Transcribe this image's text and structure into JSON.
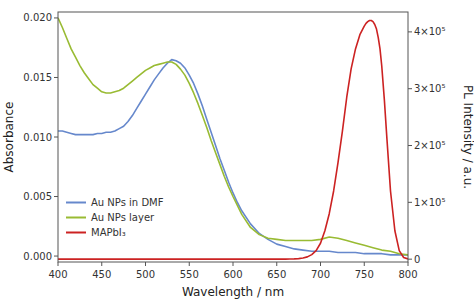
{
  "chart_data": {
    "type": "line",
    "xlabel": "Wavelength / nm",
    "ylabel": "Absorbance",
    "y2label": "PL Intensity / a.u.",
    "xlim": [
      400,
      800
    ],
    "xticks": [
      400,
      450,
      500,
      550,
      600,
      650,
      700,
      750,
      800
    ],
    "ylim": [
      -0.0005,
      0.0205
    ],
    "yticks": [
      {
        "value": 0.0,
        "label": "0.000"
      },
      0.005,
      {
        "value": 0.01,
        "label": "0.010"
      },
      0.015,
      {
        "value": 0.02,
        "label": "0.020"
      }
    ],
    "y2lim": [
      -5000,
      435000
    ],
    "y2ticks": [
      0,
      {
        "value": 100000,
        "label": "1×10⁵"
      },
      {
        "value": 200000,
        "label": "2×10⁵"
      },
      {
        "value": 300000,
        "label": "3×10⁵"
      },
      {
        "value": 400000,
        "label": "4×10⁵"
      }
    ],
    "legend": "lower left",
    "series": [
      {
        "name": "Au NPs in DMF",
        "color": "#6688cc",
        "axis": "y",
        "x": [
          400,
          405,
          410,
          415,
          420,
          425,
          430,
          435,
          440,
          445,
          450,
          455,
          460,
          465,
          470,
          475,
          480,
          485,
          490,
          495,
          500,
          505,
          510,
          515,
          520,
          525,
          530,
          535,
          540,
          545,
          550,
          555,
          560,
          565,
          570,
          575,
          580,
          585,
          590,
          595,
          600,
          605,
          610,
          620,
          630,
          640,
          650,
          660,
          670,
          680,
          690,
          700,
          710,
          720,
          730,
          740,
          750,
          760,
          770,
          780,
          790,
          800
        ],
        "values": [
          0.0105,
          0.0105,
          0.0104,
          0.0103,
          0.0102,
          0.0102,
          0.0102,
          0.0102,
          0.0102,
          0.0103,
          0.0103,
          0.0104,
          0.0104,
          0.0105,
          0.0107,
          0.0109,
          0.0113,
          0.0118,
          0.0124,
          0.013,
          0.0136,
          0.0142,
          0.0148,
          0.0153,
          0.0158,
          0.0162,
          0.0165,
          0.0164,
          0.0162,
          0.0158,
          0.0152,
          0.0145,
          0.0136,
          0.0126,
          0.0115,
          0.0104,
          0.0093,
          0.0082,
          0.0072,
          0.0062,
          0.0053,
          0.0045,
          0.0038,
          0.0027,
          0.0019,
          0.0014,
          0.001,
          0.0008,
          0.0006,
          0.0005,
          0.0004,
          0.0004,
          0.0004,
          0.0003,
          0.0003,
          0.0003,
          0.0002,
          0.0002,
          0.0002,
          0.0001,
          0.0001,
          0.0001
        ]
      },
      {
        "name": "Au NPs layer",
        "color": "#99bb33",
        "axis": "y",
        "x": [
          400,
          405,
          410,
          415,
          420,
          425,
          430,
          435,
          440,
          445,
          450,
          455,
          460,
          465,
          470,
          475,
          480,
          485,
          490,
          495,
          500,
          505,
          510,
          515,
          520,
          525,
          530,
          535,
          540,
          545,
          550,
          555,
          560,
          565,
          570,
          575,
          580,
          585,
          590,
          595,
          600,
          610,
          620,
          630,
          640,
          650,
          660,
          670,
          680,
          690,
          700,
          710,
          720,
          730,
          740,
          750,
          760,
          770,
          780,
          790,
          800
        ],
        "values": [
          0.02,
          0.0192,
          0.0183,
          0.0174,
          0.0167,
          0.016,
          0.0154,
          0.0149,
          0.0144,
          0.0141,
          0.0138,
          0.0137,
          0.0137,
          0.0138,
          0.0139,
          0.0141,
          0.0144,
          0.0147,
          0.015,
          0.0153,
          0.0156,
          0.0158,
          0.016,
          0.0161,
          0.0162,
          0.0163,
          0.0163,
          0.0161,
          0.0157,
          0.0152,
          0.0145,
          0.0137,
          0.0128,
          0.0118,
          0.0108,
          0.0097,
          0.0087,
          0.0077,
          0.0067,
          0.0058,
          0.005,
          0.0035,
          0.0024,
          0.0018,
          0.0015,
          0.0014,
          0.0013,
          0.0013,
          0.0013,
          0.0013,
          0.0014,
          0.0016,
          0.0015,
          0.0013,
          0.0011,
          0.0009,
          0.0007,
          0.0005,
          0.0004,
          0.0002,
          0.0001
        ]
      },
      {
        "name": "MAPbI₃",
        "color": "#cc2222",
        "axis": "y2",
        "x": [
          400,
          600,
          610,
          620,
          630,
          640,
          650,
          660,
          665,
          670,
          675,
          680,
          685,
          690,
          695,
          700,
          705,
          710,
          715,
          720,
          725,
          730,
          735,
          740,
          745,
          750,
          752,
          754,
          756,
          758,
          760,
          762,
          764,
          766,
          768,
          770,
          773,
          776,
          780,
          785,
          790,
          795,
          800
        ],
        "values": [
          0,
          0,
          0,
          0,
          0,
          0,
          0,
          0,
          200,
          500,
          1000,
          2000,
          4000,
          8000,
          15000,
          28000,
          50000,
          80000,
          120000,
          170000,
          225000,
          285000,
          335000,
          370000,
          395000,
          410000,
          415000,
          418000,
          420000,
          420000,
          418000,
          413000,
          405000,
          390000,
          370000,
          340000,
          280000,
          210000,
          120000,
          50000,
          15000,
          3000,
          500
        ]
      }
    ]
  }
}
